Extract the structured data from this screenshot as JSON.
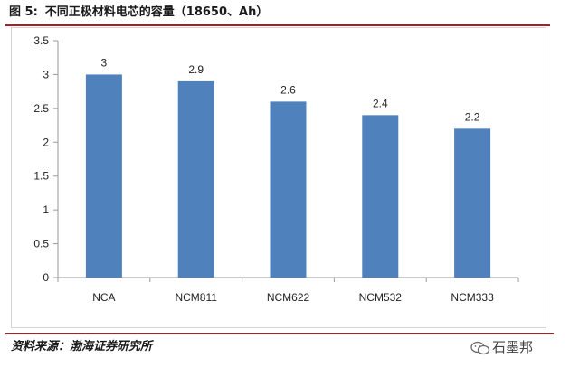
{
  "header": {
    "figure_label": "图 5:",
    "title": "不同正极材料电芯的容量（18650、Ah）"
  },
  "footer": {
    "source": "资料来源：渤海证券研究所",
    "watermark": "石墨邦"
  },
  "colors": {
    "bar": "#4f81bd",
    "rule": "#b11c23",
    "axis": "#9a9a9a"
  },
  "chart_data": {
    "type": "bar",
    "categories": [
      "NCA",
      "NCM811",
      "NCM622",
      "NCM532",
      "NCM333"
    ],
    "values": [
      3,
      2.9,
      2.6,
      2.4,
      2.2
    ],
    "data_labels": [
      "3",
      "2.9",
      "2.6",
      "2.4",
      "2.2"
    ],
    "title": "",
    "xlabel": "",
    "ylabel": "",
    "ylim": [
      0,
      3.5
    ],
    "yticks": [
      0,
      0.5,
      1,
      1.5,
      2,
      2.5,
      3,
      3.5
    ],
    "ytick_labels": [
      "0",
      "0.5",
      "1",
      "1.5",
      "2",
      "2.5",
      "3",
      "3.5"
    ],
    "grid": false,
    "legend": "none"
  }
}
